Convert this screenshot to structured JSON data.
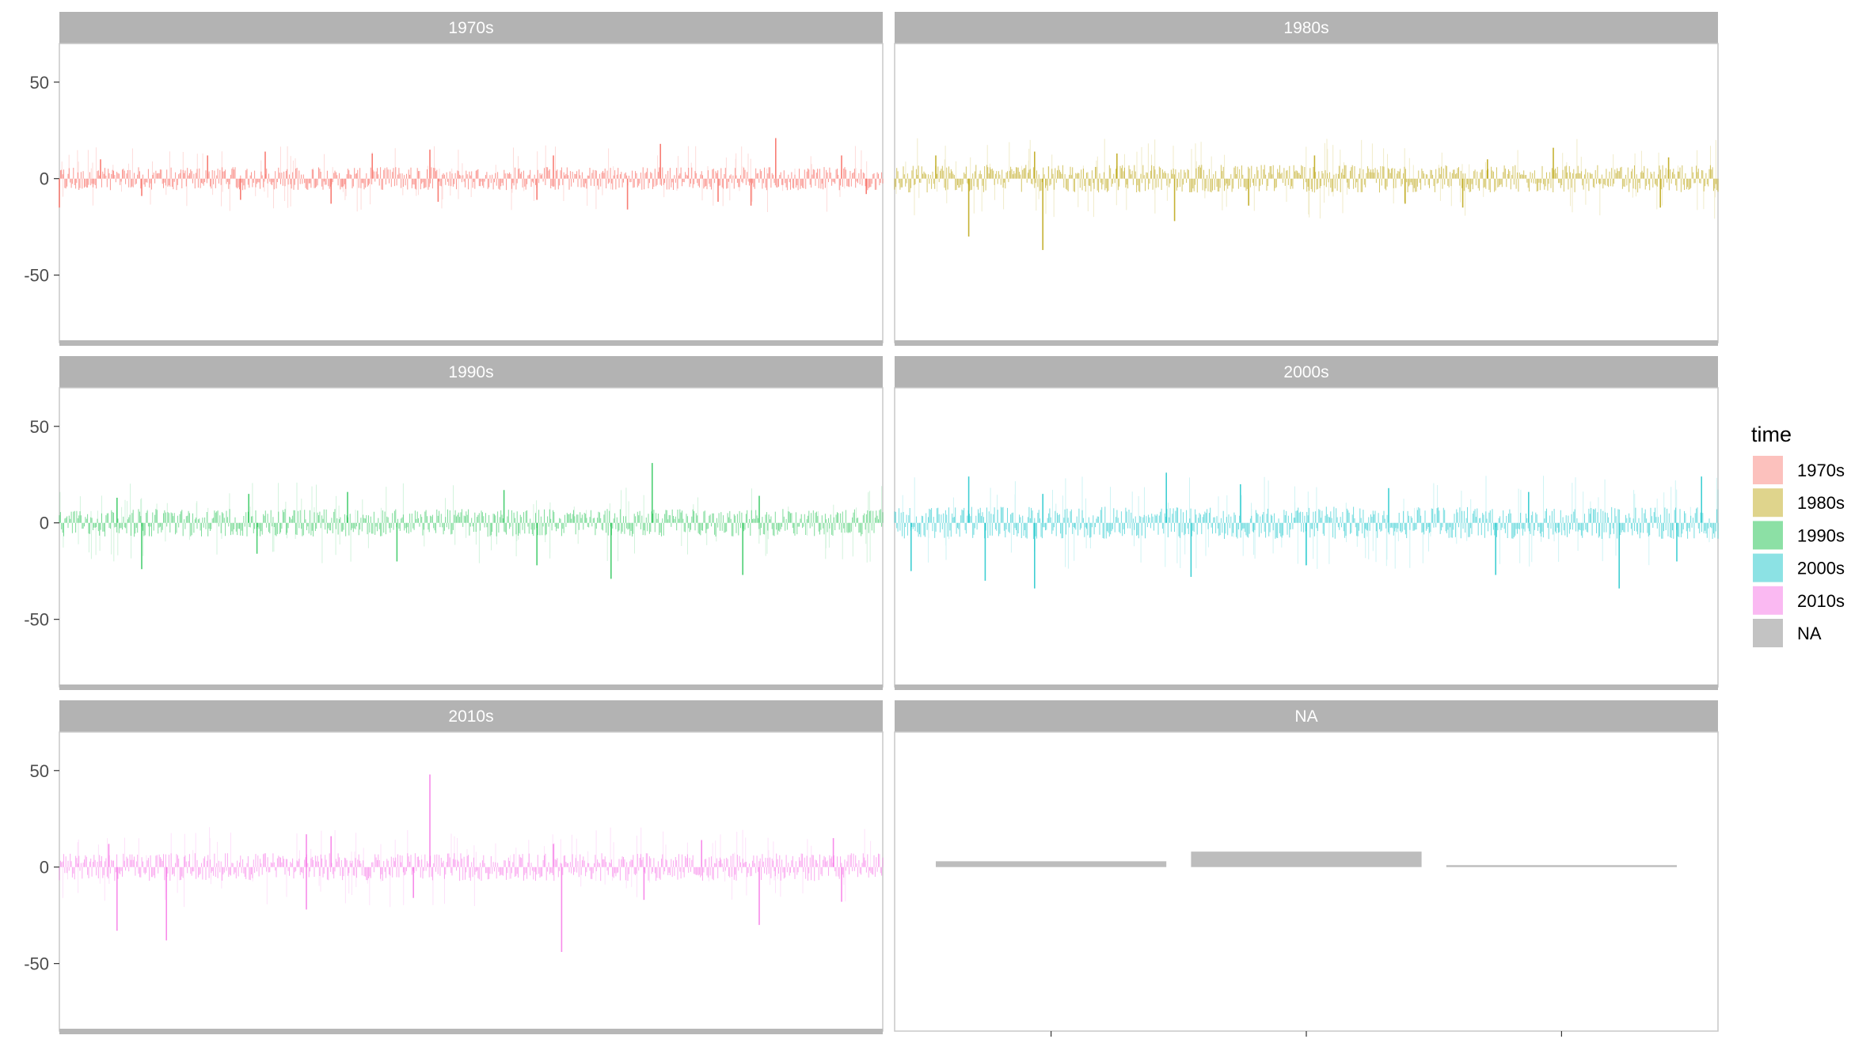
{
  "chart_data": {
    "type": "bar",
    "facet_by": "time",
    "panels": [
      {
        "label": "1970s",
        "color": "#F8766D",
        "ylim": [
          -85,
          70
        ],
        "yticks": [
          50,
          0,
          -50
        ],
        "spikes_up": [
          [
            0.05,
            10
          ],
          [
            0.18,
            12
          ],
          [
            0.25,
            14
          ],
          [
            0.38,
            13
          ],
          [
            0.45,
            15
          ],
          [
            0.6,
            12
          ],
          [
            0.73,
            18
          ],
          [
            0.87,
            21
          ],
          [
            0.95,
            12
          ]
        ],
        "spikes_down": [
          [
            0.0,
            -15
          ],
          [
            0.1,
            -9
          ],
          [
            0.22,
            -11
          ],
          [
            0.33,
            -13
          ],
          [
            0.46,
            -12
          ],
          [
            0.58,
            -11
          ],
          [
            0.69,
            -16
          ],
          [
            0.8,
            -12
          ],
          [
            0.84,
            -14
          ],
          [
            0.98,
            -8
          ]
        ],
        "noise": 5,
        "opacity": 0.75,
        "bottom_bar": true
      },
      {
        "label": "1980s",
        "color": "#B79F00",
        "ylim": [
          -85,
          70
        ],
        "yticks": [],
        "spikes_up": [
          [
            0.05,
            12
          ],
          [
            0.17,
            14
          ],
          [
            0.27,
            13
          ],
          [
            0.51,
            12
          ],
          [
            0.72,
            10
          ],
          [
            0.8,
            16
          ],
          [
            0.94,
            11
          ]
        ],
        "spikes_down": [
          [
            0.09,
            -30
          ],
          [
            0.18,
            -37
          ],
          [
            0.34,
            -22
          ],
          [
            0.43,
            -14
          ],
          [
            0.62,
            -13
          ],
          [
            0.69,
            -15
          ],
          [
            0.93,
            -15
          ]
        ],
        "noise": 6,
        "opacity": 0.6,
        "bottom_bar": true
      },
      {
        "label": "1990s",
        "color": "#00BA38",
        "ylim": [
          -85,
          70
        ],
        "yticks": [
          50,
          0,
          -50
        ],
        "spikes_up": [
          [
            0.07,
            13
          ],
          [
            0.23,
            15
          ],
          [
            0.35,
            16
          ],
          [
            0.54,
            17
          ],
          [
            0.72,
            31
          ],
          [
            0.85,
            14
          ]
        ],
        "spikes_down": [
          [
            0.1,
            -24
          ],
          [
            0.24,
            -16
          ],
          [
            0.41,
            -20
          ],
          [
            0.58,
            -22
          ],
          [
            0.67,
            -29
          ],
          [
            0.83,
            -27
          ]
        ],
        "noise": 6,
        "opacity": 0.5,
        "bottom_bar": true
      },
      {
        "label": "2000s",
        "color": "#00BFC4",
        "ylim": [
          -85,
          70
        ],
        "yticks": [],
        "spikes_up": [
          [
            0.09,
            24
          ],
          [
            0.18,
            15
          ],
          [
            0.33,
            26
          ],
          [
            0.42,
            20
          ],
          [
            0.6,
            18
          ],
          [
            0.77,
            16
          ],
          [
            0.98,
            24
          ]
        ],
        "spikes_down": [
          [
            0.02,
            -25
          ],
          [
            0.11,
            -30
          ],
          [
            0.17,
            -34
          ],
          [
            0.36,
            -28
          ],
          [
            0.5,
            -22
          ],
          [
            0.73,
            -27
          ],
          [
            0.88,
            -34
          ],
          [
            0.95,
            -20
          ]
        ],
        "noise": 7,
        "opacity": 0.55,
        "bottom_bar": true
      },
      {
        "label": "2010s",
        "color": "#F564E3",
        "ylim": [
          -85,
          70
        ],
        "yticks": [
          50,
          0,
          -50
        ],
        "spikes_up": [
          [
            0.06,
            12
          ],
          [
            0.3,
            17
          ],
          [
            0.33,
            16
          ],
          [
            0.45,
            48
          ],
          [
            0.6,
            12
          ],
          [
            0.78,
            14
          ],
          [
            0.94,
            15
          ]
        ],
        "spikes_down": [
          [
            0.07,
            -33
          ],
          [
            0.13,
            -38
          ],
          [
            0.3,
            -22
          ],
          [
            0.43,
            -16
          ],
          [
            0.61,
            -44
          ],
          [
            0.71,
            -17
          ],
          [
            0.85,
            -30
          ],
          [
            0.95,
            -18
          ]
        ],
        "noise": 6,
        "opacity": 0.55,
        "bottom_bar": true
      },
      {
        "label": "NA",
        "color": "#BDBDBD",
        "ylim": [
          -85,
          70
        ],
        "yticks": [],
        "bars": [
          {
            "x": [
              0.05,
              0.33
            ],
            "y": [
              0,
              3
            ]
          },
          {
            "x": [
              0.36,
              0.64
            ],
            "y": [
              0,
              8
            ]
          },
          {
            "x": [
              0.67,
              0.95
            ],
            "y": [
              0,
              1
            ]
          }
        ],
        "xticks": [
          0.19,
          0.5,
          0.81
        ],
        "bottom_bar": false
      }
    ],
    "legend": {
      "title": "time",
      "position": "right",
      "items": [
        {
          "label": "1970s",
          "color": "#F8766D"
        },
        {
          "label": "1980s",
          "color": "#B79F00"
        },
        {
          "label": "1990s",
          "color": "#00BA38"
        },
        {
          "label": "2000s",
          "color": "#00BFC4"
        },
        {
          "label": "2010s",
          "color": "#F564E3"
        },
        {
          "label": "NA",
          "color": "#BDBDBD"
        }
      ]
    },
    "grid": false
  }
}
